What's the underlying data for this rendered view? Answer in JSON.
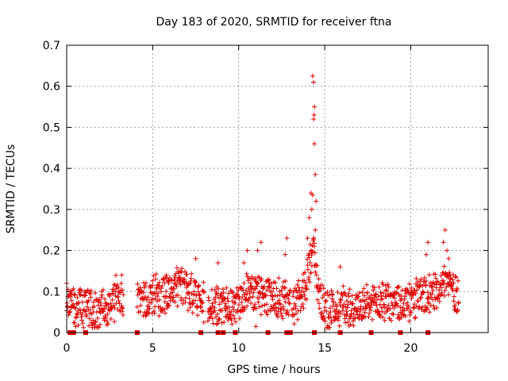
{
  "chart_data": {
    "type": "scatter",
    "title": "Day 183 of 2020, SRMTID for receiver ftna",
    "xlabel": "GPS time / hours",
    "ylabel": "SRMTID / TECUs",
    "xlim": [
      0,
      24.5
    ],
    "ylim": [
      0,
      0.7
    ],
    "x_ticks": [
      0,
      5,
      10,
      15,
      20
    ],
    "x_tick_labels": [
      "0",
      "5",
      "10",
      "15",
      "20"
    ],
    "y_ticks": [
      0,
      0.1,
      0.2,
      0.3,
      0.4,
      0.5,
      0.6,
      0.7
    ],
    "y_tick_labels": [
      "0",
      "0.1",
      "0.2",
      "0.3",
      "0.4",
      "0.5",
      "0.6",
      "0.7"
    ],
    "grid": true,
    "marker": "+",
    "series_color": "#e00000",
    "baseline_markers_color": "#e00000",
    "data_gaps": [
      [
        3.3,
        4.1
      ],
      [
        8.0,
        8.2
      ],
      [
        13.0,
        13.1
      ]
    ],
    "baseline_marker_hours": [
      0.2,
      0.4,
      1.1,
      4.1,
      7.8,
      8.8,
      9.1,
      9.8,
      11.7,
      12.8,
      13.0,
      14.4,
      15.9,
      17.7,
      19.4,
      21.0
    ],
    "envelope": [
      {
        "x": 0.0,
        "y": 0.08
      },
      {
        "x": 0.3,
        "y": 0.06
      },
      {
        "x": 1.0,
        "y": 0.06
      },
      {
        "x": 1.5,
        "y": 0.05
      },
      {
        "x": 2.0,
        "y": 0.06
      },
      {
        "x": 2.5,
        "y": 0.07
      },
      {
        "x": 3.0,
        "y": 0.09
      },
      {
        "x": 4.2,
        "y": 0.07
      },
      {
        "x": 5.0,
        "y": 0.09
      },
      {
        "x": 6.0,
        "y": 0.1
      },
      {
        "x": 6.5,
        "y": 0.11
      },
      {
        "x": 7.0,
        "y": 0.1
      },
      {
        "x": 7.5,
        "y": 0.09
      },
      {
        "x": 8.3,
        "y": 0.06
      },
      {
        "x": 9.0,
        "y": 0.06
      },
      {
        "x": 9.5,
        "y": 0.07
      },
      {
        "x": 10.0,
        "y": 0.08
      },
      {
        "x": 10.5,
        "y": 0.1
      },
      {
        "x": 11.0,
        "y": 0.1
      },
      {
        "x": 11.5,
        "y": 0.08
      },
      {
        "x": 12.0,
        "y": 0.09
      },
      {
        "x": 12.5,
        "y": 0.08
      },
      {
        "x": 13.2,
        "y": 0.07
      },
      {
        "x": 13.6,
        "y": 0.08
      },
      {
        "x": 14.0,
        "y": 0.14
      },
      {
        "x": 14.3,
        "y": 0.22
      },
      {
        "x": 14.5,
        "y": 0.14
      },
      {
        "x": 14.8,
        "y": 0.08
      },
      {
        "x": 15.2,
        "y": 0.05
      },
      {
        "x": 16.0,
        "y": 0.07
      },
      {
        "x": 17.0,
        "y": 0.06
      },
      {
        "x": 17.5,
        "y": 0.06
      },
      {
        "x": 18.0,
        "y": 0.07
      },
      {
        "x": 18.5,
        "y": 0.08
      },
      {
        "x": 19.0,
        "y": 0.07
      },
      {
        "x": 19.5,
        "y": 0.07
      },
      {
        "x": 20.0,
        "y": 0.07
      },
      {
        "x": 20.5,
        "y": 0.09
      },
      {
        "x": 21.0,
        "y": 0.08
      },
      {
        "x": 21.5,
        "y": 0.11
      },
      {
        "x": 22.0,
        "y": 0.13
      },
      {
        "x": 22.4,
        "y": 0.11
      },
      {
        "x": 22.8,
        "y": 0.09
      }
    ],
    "notable_points": [
      {
        "x": 14.3,
        "y": 0.625
      },
      {
        "x": 14.35,
        "y": 0.61
      },
      {
        "x": 14.4,
        "y": 0.55
      },
      {
        "x": 14.38,
        "y": 0.53
      },
      {
        "x": 14.36,
        "y": 0.52
      },
      {
        "x": 14.4,
        "y": 0.46
      },
      {
        "x": 14.45,
        "y": 0.385
      },
      {
        "x": 14.2,
        "y": 0.34
      },
      {
        "x": 14.3,
        "y": 0.335
      },
      {
        "x": 14.5,
        "y": 0.32
      },
      {
        "x": 14.1,
        "y": 0.28
      },
      {
        "x": 14.25,
        "y": 0.3
      },
      {
        "x": 14.45,
        "y": 0.25
      },
      {
        "x": 14.0,
        "y": 0.23
      },
      {
        "x": 14.2,
        "y": 0.2
      },
      {
        "x": 12.8,
        "y": 0.23
      },
      {
        "x": 12.7,
        "y": 0.19
      },
      {
        "x": 11.3,
        "y": 0.22
      },
      {
        "x": 11.1,
        "y": 0.2
      },
      {
        "x": 10.5,
        "y": 0.2
      },
      {
        "x": 10.3,
        "y": 0.17
      },
      {
        "x": 11.0,
        "y": 0.015
      },
      {
        "x": 7.5,
        "y": 0.18
      },
      {
        "x": 8.8,
        "y": 0.17
      },
      {
        "x": 21.0,
        "y": 0.22
      },
      {
        "x": 20.9,
        "y": 0.19
      },
      {
        "x": 22.0,
        "y": 0.25
      },
      {
        "x": 21.9,
        "y": 0.22
      },
      {
        "x": 22.1,
        "y": 0.2
      },
      {
        "x": 22.2,
        "y": 0.18
      },
      {
        "x": 5.8,
        "y": 0.14
      },
      {
        "x": 6.6,
        "y": 0.15
      },
      {
        "x": 15.9,
        "y": 0.16
      },
      {
        "x": 0.0,
        "y": 0.12
      },
      {
        "x": 3.2,
        "y": 0.14
      }
    ]
  }
}
